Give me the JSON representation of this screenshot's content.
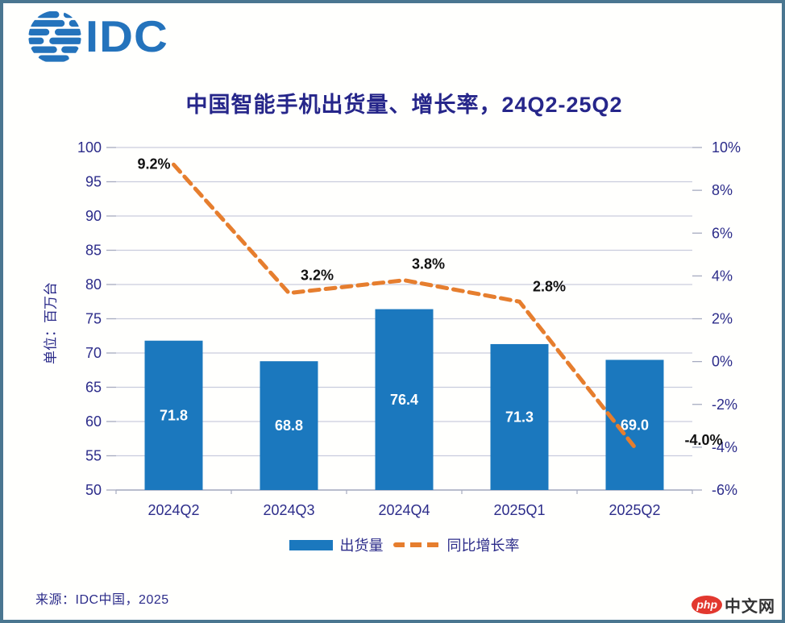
{
  "logo": {
    "text": "IDC",
    "color": "#2473BC",
    "globe_icon": "idc-globe-icon"
  },
  "chart_data": {
    "type": "combo",
    "title": "中国智能手机出货量、增长率，24Q2-25Q2",
    "categories": [
      "2024Q2",
      "2024Q3",
      "2024Q4",
      "2025Q1",
      "2025Q2"
    ],
    "series": [
      {
        "name": "出货量",
        "type": "bar",
        "axis": "left",
        "color": "#1B78BE",
        "values": [
          71.8,
          68.8,
          76.4,
          71.3,
          69.0
        ],
        "labels": [
          "71.8",
          "68.8",
          "76.4",
          "71.3",
          "69.0"
        ],
        "label_color": "#FFFFFF"
      },
      {
        "name": "同比增长率",
        "type": "dashed-line",
        "axis": "right",
        "color": "#E67E2E",
        "values": [
          9.2,
          3.2,
          3.8,
          2.8,
          -4.0
        ],
        "labels": [
          "9.2%",
          "3.2%",
          "3.8%",
          "2.8%",
          "-4.0%"
        ],
        "label_color": "#111111"
      }
    ],
    "left_axis": {
      "label": "单位：百万台",
      "min": 50,
      "max": 100,
      "step": 5,
      "tick_labels": [
        "100",
        "95",
        "90",
        "85",
        "80",
        "75",
        "70",
        "65",
        "60",
        "55",
        "50"
      ]
    },
    "right_axis": {
      "min": -6,
      "max": 10,
      "step": 2,
      "tick_labels": [
        "10%",
        "8%",
        "6%",
        "4%",
        "2%",
        "0%",
        "-2%",
        "-4%",
        "-6%"
      ]
    },
    "grid": true,
    "legend_position": "bottom"
  },
  "footer": {
    "source": "来源：IDC中国，2025"
  },
  "watermark": {
    "badge": "php",
    "text": "中文网"
  },
  "colors": {
    "navy_text": "#2C2C8A",
    "title_text": "#26268A",
    "gridline": "#C9CCDD",
    "axis_line": "#A6ABC0",
    "bar_blue": "#1B78BE",
    "line_orange": "#E67E2E",
    "frame_border": "#4A7690",
    "logo_blue": "#2473BC",
    "watermark_red": "#E2382E"
  }
}
